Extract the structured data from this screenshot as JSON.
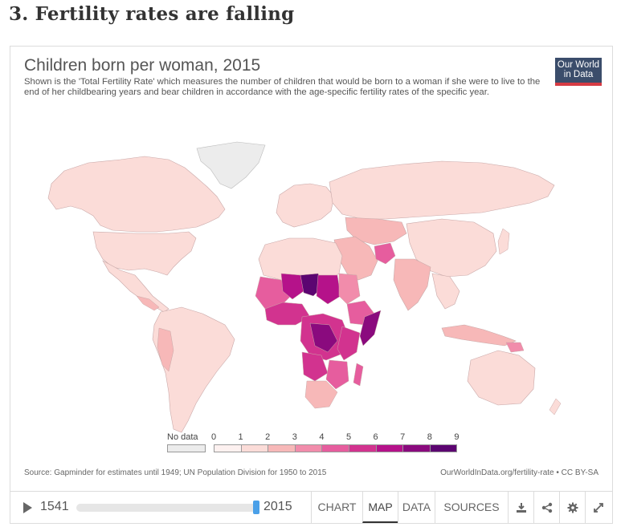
{
  "section_heading": "3. Fertility rates are falling",
  "chart": {
    "title": "Children born per woman, 2015",
    "subtitle": "Shown is the 'Total Fertility Rate' which measures the number of children that would be born to a woman if she were to live to the end of her childbearing years and bear children in accordance with the age-specific fertility rates of the specific year.",
    "logo_line1": "Our World",
    "logo_line2": "in Data",
    "source": "Source: Gapminder for estimates until 1949; UN Population Division for 1950 to 2015",
    "license": "OurWorldInData.org/fertility-rate • CC BY-SA"
  },
  "legend": {
    "no_data_label": "No data",
    "no_data_color": "#ececec",
    "ticks": [
      "0",
      "1",
      "2",
      "3",
      "4",
      "5",
      "6",
      "7",
      "8",
      "9"
    ],
    "colors": [
      "#fdf1f0",
      "#fbdcd8",
      "#f7b8b8",
      "#f18cab",
      "#e65d9e",
      "#d2338f",
      "#b5128a",
      "#8a0a7e",
      "#5c0571"
    ]
  },
  "controls": {
    "year_start": "1541",
    "year_end": "2015",
    "timeline_fraction": 1.0,
    "tabs": [
      "CHART",
      "MAP",
      "DATA",
      "SOURCES"
    ],
    "active_tab": "MAP",
    "icons": [
      "download-icon",
      "share-icon",
      "settings-icon",
      "expand-icon"
    ]
  }
}
